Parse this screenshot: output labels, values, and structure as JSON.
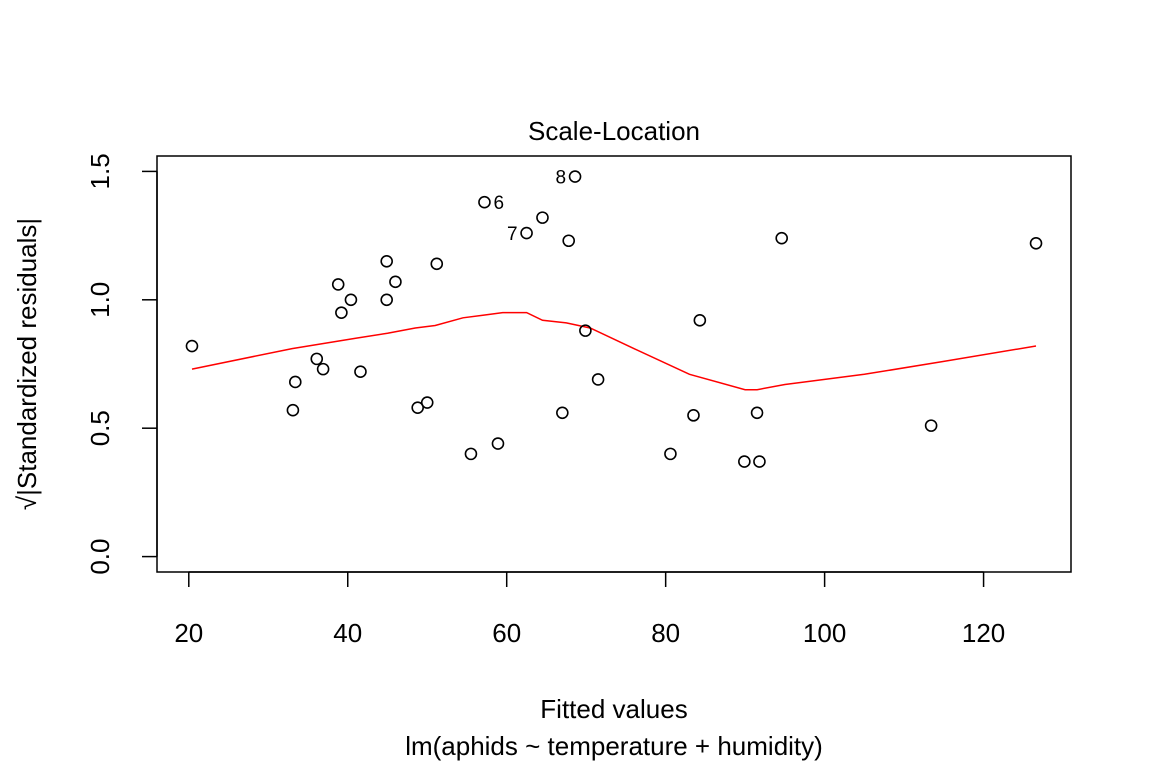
{
  "chart_data": {
    "type": "scatter",
    "title": "Scale-Location",
    "xlabel": "Fitted values",
    "sublabel": "lm(aphids ~ temperature + humidity)",
    "ylabel_prefix": "√",
    "ylabel": "|Standardized residuals|",
    "xlim": [
      16,
      131
    ],
    "ylim": [
      -0.06,
      1.56
    ],
    "xticks": [
      20,
      40,
      60,
      80,
      100,
      120
    ],
    "yticks": [
      0.0,
      0.5,
      1.0,
      1.5
    ],
    "ytick_labels": [
      "0.0",
      "0.5",
      "1.0",
      "1.5"
    ],
    "points": [
      {
        "x": 20.4,
        "y": 0.82
      },
      {
        "x": 33.1,
        "y": 0.57
      },
      {
        "x": 33.4,
        "y": 0.68
      },
      {
        "x": 36.1,
        "y": 0.77
      },
      {
        "x": 36.9,
        "y": 0.73
      },
      {
        "x": 38.8,
        "y": 1.06
      },
      {
        "x": 39.2,
        "y": 0.95
      },
      {
        "x": 40.4,
        "y": 1.0
      },
      {
        "x": 41.6,
        "y": 0.72
      },
      {
        "x": 44.9,
        "y": 1.15
      },
      {
        "x": 44.9,
        "y": 1.0
      },
      {
        "x": 46.0,
        "y": 1.07
      },
      {
        "x": 48.8,
        "y": 0.58
      },
      {
        "x": 50.0,
        "y": 0.6
      },
      {
        "x": 51.2,
        "y": 1.14
      },
      {
        "x": 55.5,
        "y": 0.4
      },
      {
        "x": 57.2,
        "y": 1.38,
        "label": "6"
      },
      {
        "x": 58.9,
        "y": 0.44
      },
      {
        "x": 62.5,
        "y": 1.26,
        "label": "7"
      },
      {
        "x": 64.5,
        "y": 1.32
      },
      {
        "x": 67.0,
        "y": 0.56
      },
      {
        "x": 67.8,
        "y": 1.23
      },
      {
        "x": 68.6,
        "y": 1.48,
        "label": "8"
      },
      {
        "x": 69.9,
        "y": 0.88
      },
      {
        "x": 71.5,
        "y": 0.69
      },
      {
        "x": 80.6,
        "y": 0.4
      },
      {
        "x": 83.5,
        "y": 0.55
      },
      {
        "x": 84.3,
        "y": 0.92
      },
      {
        "x": 89.9,
        "y": 0.37
      },
      {
        "x": 91.5,
        "y": 0.56
      },
      {
        "x": 91.8,
        "y": 0.37
      },
      {
        "x": 94.6,
        "y": 1.24
      },
      {
        "x": 113.4,
        "y": 0.51
      },
      {
        "x": 126.6,
        "y": 1.22
      }
    ],
    "smoother": {
      "color": "#FF0000",
      "x": [
        20.4,
        33.0,
        41.0,
        45.0,
        48.5,
        51.0,
        54.5,
        57.0,
        59.5,
        62.5,
        64.5,
        67.5,
        70.5,
        76.0,
        83.0,
        90.0,
        91.5,
        95.0,
        105.0,
        115.0,
        126.6
      ],
      "y": [
        0.73,
        0.81,
        0.85,
        0.87,
        0.89,
        0.9,
        0.93,
        0.94,
        0.95,
        0.95,
        0.92,
        0.91,
        0.89,
        0.81,
        0.71,
        0.65,
        0.65,
        0.67,
        0.71,
        0.76,
        0.82
      ]
    },
    "grid": false,
    "legend": "none",
    "point_style": "open-circle",
    "point_color": "#000000"
  }
}
